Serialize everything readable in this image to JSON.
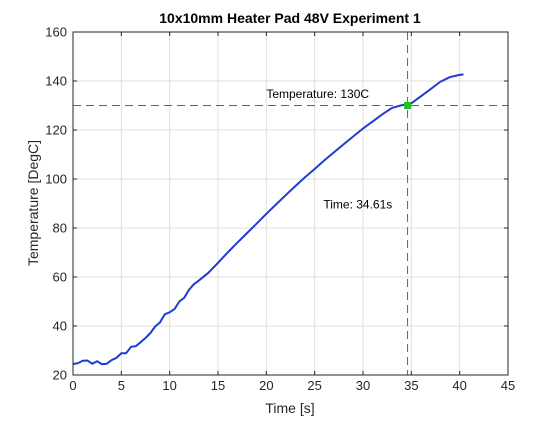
{
  "chart_data": {
    "type": "line",
    "title": "10x10mm Heater Pad 48V Experiment 1",
    "xlabel": "Time [s]",
    "ylabel": "Temperature [DegC]",
    "xlim": [
      0,
      45
    ],
    "ylim": [
      20,
      160
    ],
    "xticks": [
      0,
      5,
      10,
      15,
      20,
      25,
      30,
      35,
      40,
      45
    ],
    "yticks": [
      20,
      40,
      60,
      80,
      100,
      120,
      140,
      160
    ],
    "grid": true,
    "series": [
      {
        "color": "#1f3bd1",
        "x": [
          0,
          0.5,
          1.0,
          1.5,
          2.0,
          2.5,
          3.0,
          3.5,
          4.0,
          4.5,
          5.0,
          5.5,
          6.0,
          6.5,
          7.0,
          7.5,
          8.0,
          8.5,
          9.0,
          9.5,
          10.0,
          10.5,
          11.0,
          11.5,
          12.0,
          12.5,
          13.0,
          14.0,
          15.0,
          16.0,
          17.0,
          18.0,
          19.0,
          20.0,
          21.0,
          22.0,
          23.0,
          24.0,
          25.0,
          26.0,
          27.0,
          28.0,
          29.0,
          30.0,
          31.0,
          32.0,
          33.0,
          34.0,
          34.61,
          35.0,
          36.0,
          37.0,
          38.0,
          39.0,
          40.0,
          40.4
        ],
        "y": [
          24.5,
          24.8,
          25.8,
          25.9,
          24.6,
          25.6,
          24.4,
          24.6,
          26.1,
          27.0,
          28.9,
          28.9,
          31.5,
          31.8,
          33.4,
          35.1,
          37.1,
          39.8,
          41.5,
          44.8,
          45.6,
          46.9,
          50.0,
          51.5,
          54.8,
          57.0,
          58.5,
          61.7,
          65.8,
          70.0,
          74.0,
          77.9,
          81.8,
          85.8,
          89.6,
          93.4,
          97.1,
          100.7,
          104.1,
          107.6,
          110.9,
          114.2,
          117.4,
          120.6,
          123.5,
          126.4,
          129.0,
          130.1,
          130.5,
          130.9,
          133.8,
          136.7,
          139.7,
          141.6,
          142.5,
          142.7
        ]
      }
    ],
    "reference_lines": {
      "color": "#c8325a",
      "horizontal_y": 130,
      "vertical_x": 34.61
    },
    "marker": {
      "x": 34.61,
      "y": 130,
      "color": "#22c02a"
    },
    "annotations": [
      {
        "text": "Temperature: 130C",
        "x": 20.0,
        "y": 133.0
      },
      {
        "text": "Time: 34.61s",
        "x": 25.9,
        "y": 88.0
      }
    ]
  }
}
